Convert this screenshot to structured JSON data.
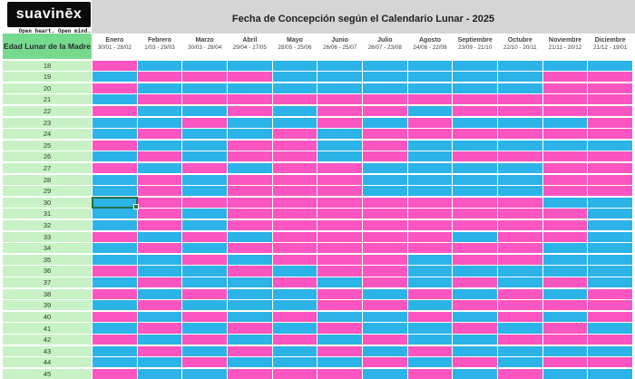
{
  "brand": {
    "logo_text": "suavinēx",
    "tagline": "Open heart. Open mind."
  },
  "title": "Fecha de Concepción según el Calendario Lunar - 2025",
  "row_header": "Edad Lunar de la Madre",
  "colors": {
    "pink": "#fa55c0",
    "blue": "#2cb3e8",
    "header_green": "#76da8e",
    "age_green": "#c8f2c6",
    "strip_gray": "#d5d5d5",
    "selection_green": "#217346"
  },
  "months": [
    {
      "name": "Enero",
      "dates": "30/01 - 28/02"
    },
    {
      "name": "Febrero",
      "dates": "1/03 - 29/03"
    },
    {
      "name": "Marzo",
      "dates": "30/03 - 28/04"
    },
    {
      "name": "Abril",
      "dates": "29/04 - 27/05"
    },
    {
      "name": "Mayo",
      "dates": "28/05 - 25/06"
    },
    {
      "name": "Junio",
      "dates": "26/06 - 25/07"
    },
    {
      "name": "Julio",
      "dates": "26/07 - 23/08"
    },
    {
      "name": "Agosto",
      "dates": "24/08 - 22/09"
    },
    {
      "name": "Septiembre",
      "dates": "23/09 - 21/10"
    },
    {
      "name": "Octubre",
      "dates": "22/10 - 20/11"
    },
    {
      "name": "Noviembre",
      "dates": "21/11 - 20/12"
    },
    {
      "name": "Diciembre",
      "dates": "21/12 - 19/01"
    }
  ],
  "selected_cell": {
    "age": 30,
    "month": "Enero"
  },
  "grid": {
    "legend": {
      "P": "pink",
      "B": "blue"
    },
    "ages": [
      18,
      19,
      20,
      21,
      22,
      23,
      24,
      25,
      26,
      27,
      28,
      29,
      30,
      31,
      32,
      33,
      34,
      35,
      36,
      37,
      38,
      39,
      40,
      41,
      42,
      43,
      44,
      45
    ],
    "rows": [
      [
        "P",
        "B",
        "B",
        "B",
        "B",
        "B",
        "B",
        "B",
        "B",
        "B",
        "B",
        "B"
      ],
      [
        "B",
        "P",
        "P",
        "P",
        "B",
        "B",
        "B",
        "B",
        "B",
        "B",
        "P",
        "P"
      ],
      [
        "P",
        "B",
        "B",
        "B",
        "B",
        "B",
        "B",
        "B",
        "B",
        "B",
        "P",
        "P"
      ],
      [
        "B",
        "P",
        "P",
        "P",
        "P",
        "P",
        "P",
        "P",
        "P",
        "P",
        "P",
        "P"
      ],
      [
        "P",
        "B",
        "B",
        "P",
        "B",
        "P",
        "P",
        "B",
        "P",
        "P",
        "P",
        "P"
      ],
      [
        "B",
        "B",
        "P",
        "B",
        "B",
        "P",
        "B",
        "P",
        "B",
        "B",
        "B",
        "P"
      ],
      [
        "B",
        "P",
        "B",
        "B",
        "P",
        "B",
        "P",
        "P",
        "P",
        "P",
        "P",
        "P"
      ],
      [
        "P",
        "B",
        "B",
        "P",
        "P",
        "B",
        "P",
        "B",
        "B",
        "B",
        "B",
        "B"
      ],
      [
        "B",
        "P",
        "B",
        "P",
        "P",
        "B",
        "P",
        "B",
        "P",
        "P",
        "P",
        "P"
      ],
      [
        "P",
        "B",
        "P",
        "B",
        "P",
        "P",
        "B",
        "B",
        "B",
        "B",
        "P",
        "P"
      ],
      [
        "B",
        "P",
        "B",
        "P",
        "P",
        "P",
        "B",
        "B",
        "B",
        "B",
        "P",
        "P"
      ],
      [
        "B",
        "P",
        "B",
        "P",
        "P",
        "P",
        "B",
        "B",
        "B",
        "B",
        "P",
        "P"
      ],
      [
        "B",
        "P",
        "P",
        "P",
        "P",
        "P",
        "P",
        "P",
        "P",
        "P",
        "B",
        "B"
      ],
      [
        "B",
        "P",
        "B",
        "P",
        "P",
        "P",
        "P",
        "P",
        "P",
        "P",
        "P",
        "B"
      ],
      [
        "B",
        "P",
        "B",
        "P",
        "P",
        "P",
        "P",
        "P",
        "P",
        "P",
        "P",
        "B"
      ],
      [
        "P",
        "B",
        "P",
        "B",
        "P",
        "P",
        "P",
        "P",
        "B",
        "P",
        "P",
        "B"
      ],
      [
        "B",
        "P",
        "B",
        "P",
        "P",
        "P",
        "P",
        "P",
        "P",
        "P",
        "B",
        "B"
      ],
      [
        "B",
        "B",
        "P",
        "B",
        "P",
        "P",
        "P",
        "B",
        "P",
        "P",
        "B",
        "B"
      ],
      [
        "P",
        "B",
        "B",
        "P",
        "B",
        "P",
        "P",
        "B",
        "B",
        "B",
        "B",
        "B"
      ],
      [
        "B",
        "P",
        "B",
        "B",
        "P",
        "B",
        "P",
        "B",
        "P",
        "B",
        "P",
        "B"
      ],
      [
        "P",
        "B",
        "P",
        "B",
        "B",
        "P",
        "B",
        "P",
        "B",
        "P",
        "B",
        "P"
      ],
      [
        "B",
        "P",
        "B",
        "B",
        "B",
        "P",
        "P",
        "B",
        "P",
        "P",
        "P",
        "P"
      ],
      [
        "P",
        "B",
        "P",
        "B",
        "P",
        "B",
        "B",
        "P",
        "B",
        "P",
        "B",
        "P"
      ],
      [
        "B",
        "P",
        "B",
        "P",
        "B",
        "P",
        "B",
        "B",
        "P",
        "B",
        "P",
        "B"
      ],
      [
        "P",
        "B",
        "P",
        "B",
        "P",
        "B",
        "P",
        "B",
        "B",
        "P",
        "P",
        "P"
      ],
      [
        "B",
        "P",
        "B",
        "P",
        "B",
        "P",
        "B",
        "P",
        "B",
        "B",
        "B",
        "B"
      ],
      [
        "B",
        "B",
        "P",
        "B",
        "B",
        "B",
        "P",
        "B",
        "P",
        "B",
        "P",
        "P"
      ],
      [
        "P",
        "B",
        "B",
        "P",
        "P",
        "P",
        "B",
        "P",
        "B",
        "P",
        "B",
        "B"
      ]
    ]
  }
}
